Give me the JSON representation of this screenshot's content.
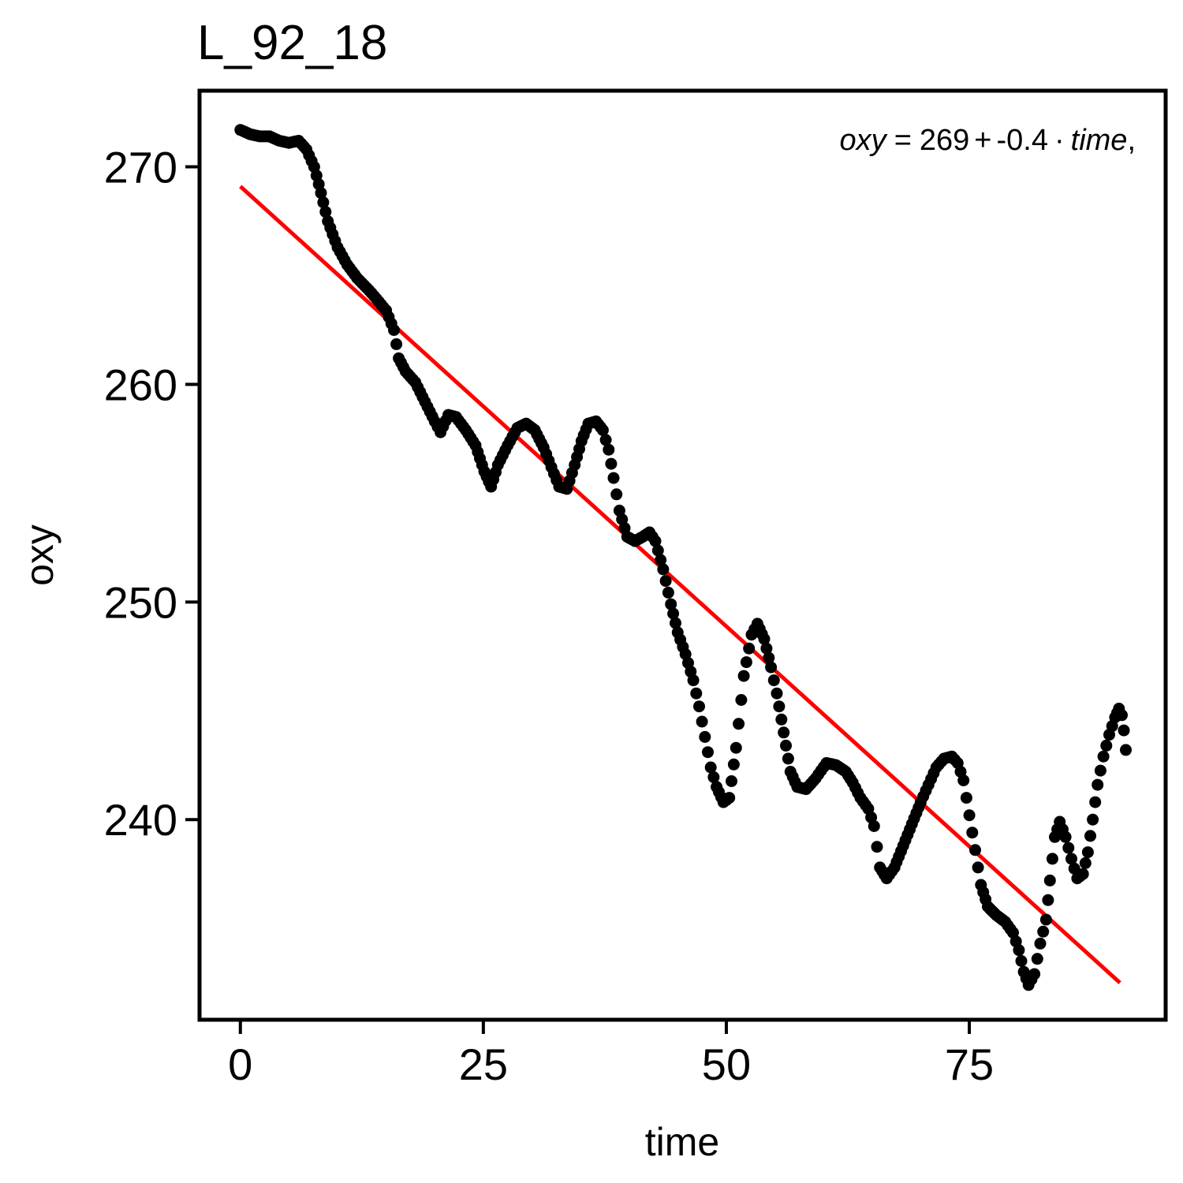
{
  "chart_data": {
    "type": "scatter",
    "title": "L_92_18",
    "xlabel": "time",
    "ylabel": "oxy",
    "xlim": [
      -4.2,
      95.2
    ],
    "ylim": [
      230.8,
      273.5
    ],
    "x_ticks": [
      0,
      25,
      50,
      75
    ],
    "x_tick_labels": [
      "0",
      "25",
      "50",
      "75"
    ],
    "y_ticks": [
      240,
      250,
      260,
      270
    ],
    "y_tick_labels": [
      "240",
      "250",
      "260",
      "270"
    ],
    "grid": false,
    "legend": "none",
    "annotation": {
      "lhs": "oxy",
      "eq": "=",
      "intercept": "269",
      "plus": "+",
      "slope": "-0.4",
      "dot": "·",
      "var": "time",
      "comma": ","
    },
    "points_color": "#000000",
    "fit_color": "#ff0000",
    "fit_line": {
      "x": [
        0,
        90.5
      ],
      "y": [
        269.1,
        232.5
      ]
    },
    "anchors": [
      [
        0,
        271.7
      ],
      [
        1,
        271.5
      ],
      [
        2,
        271.4
      ],
      [
        3,
        271.4
      ],
      [
        4,
        271.2
      ],
      [
        5,
        271.1
      ],
      [
        6,
        271.2
      ],
      [
        6.8,
        270.8
      ],
      [
        7.6,
        270.0
      ],
      [
        8.3,
        268.8
      ],
      [
        9,
        267.5
      ],
      [
        10,
        266.3
      ],
      [
        11,
        265.5
      ],
      [
        12,
        264.9
      ],
      [
        13.5,
        264.2
      ],
      [
        15,
        263.4
      ],
      [
        15.8,
        262.5
      ],
      [
        16.3,
        261.2
      ],
      [
        17,
        260.6
      ],
      [
        18,
        260.1
      ],
      [
        19,
        259.2
      ],
      [
        20,
        258.3
      ],
      [
        20.6,
        257.8
      ],
      [
        21.4,
        258.6
      ],
      [
        22.2,
        258.5
      ],
      [
        23.2,
        257.9
      ],
      [
        24.2,
        257.2
      ],
      [
        25.1,
        256.0
      ],
      [
        25.8,
        255.3
      ],
      [
        26.5,
        256.3
      ],
      [
        27.5,
        257.2
      ],
      [
        28.5,
        258.0
      ],
      [
        29.4,
        258.2
      ],
      [
        30.3,
        257.9
      ],
      [
        31.2,
        257.1
      ],
      [
        32,
        256.2
      ],
      [
        32.8,
        255.3
      ],
      [
        33.6,
        255.2
      ],
      [
        34.4,
        256.3
      ],
      [
        35.1,
        257.4
      ],
      [
        35.8,
        258.2
      ],
      [
        36.6,
        258.3
      ],
      [
        37.3,
        257.9
      ],
      [
        37.9,
        257.0
      ],
      [
        38.4,
        255.7
      ],
      [
        39,
        254.2
      ],
      [
        39.8,
        253.0
      ],
      [
        40.6,
        252.8
      ],
      [
        41.4,
        253.0
      ],
      [
        42.1,
        253.2
      ],
      [
        42.7,
        252.8
      ],
      [
        43.5,
        251.5
      ],
      [
        44.3,
        249.9
      ],
      [
        45,
        248.6
      ],
      [
        45.8,
        247.6
      ],
      [
        46.6,
        246.4
      ],
      [
        47.2,
        245.2
      ],
      [
        47.8,
        243.8
      ],
      [
        48.4,
        242.4
      ],
      [
        49,
        241.5
      ],
      [
        49.7,
        240.8
      ],
      [
        50.3,
        241.0
      ],
      [
        51,
        243.3
      ],
      [
        51.8,
        246.6
      ],
      [
        52.6,
        248.5
      ],
      [
        53.2,
        249.0
      ],
      [
        53.9,
        248.3
      ],
      [
        54.6,
        247.0
      ],
      [
        55.2,
        245.8
      ],
      [
        55.9,
        244.0
      ],
      [
        56.6,
        242.2
      ],
      [
        57.3,
        241.5
      ],
      [
        58.2,
        241.4
      ],
      [
        59.2,
        241.9
      ],
      [
        60.3,
        242.6
      ],
      [
        61.3,
        242.5
      ],
      [
        62.3,
        242.2
      ],
      [
        63,
        241.7
      ],
      [
        63.8,
        241.0
      ],
      [
        64.6,
        240.5
      ],
      [
        65.2,
        239.7
      ],
      [
        65.8,
        237.8
      ],
      [
        66.5,
        237.3
      ],
      [
        67.3,
        237.8
      ],
      [
        68.2,
        238.8
      ],
      [
        69.1,
        239.8
      ],
      [
        70,
        240.8
      ],
      [
        70.8,
        241.6
      ],
      [
        71.6,
        242.4
      ],
      [
        72.4,
        242.8
      ],
      [
        73.2,
        242.9
      ],
      [
        73.8,
        242.6
      ],
      [
        74.4,
        241.8
      ],
      [
        75,
        240.2
      ],
      [
        75.6,
        238.6
      ],
      [
        76.2,
        237.0
      ],
      [
        76.9,
        236.0
      ],
      [
        77.8,
        235.6
      ],
      [
        78.7,
        235.3
      ],
      [
        79.5,
        234.8
      ],
      [
        80.1,
        234.0
      ],
      [
        80.6,
        233.0
      ],
      [
        81.1,
        232.4
      ],
      [
        81.7,
        232.9
      ],
      [
        82.3,
        234.3
      ],
      [
        82.9,
        235.4
      ],
      [
        83.3,
        237.2
      ],
      [
        83.8,
        239.2
      ],
      [
        84.3,
        239.9
      ],
      [
        84.9,
        239.2
      ],
      [
        85.5,
        238.2
      ],
      [
        86.1,
        237.3
      ],
      [
        86.7,
        237.5
      ],
      [
        87.2,
        238.5
      ],
      [
        87.7,
        240.0
      ],
      [
        88.2,
        241.6
      ],
      [
        88.8,
        242.9
      ],
      [
        89.4,
        243.9
      ],
      [
        90,
        244.7
      ],
      [
        90.4,
        245.1
      ],
      [
        90.7,
        244.8
      ],
      [
        90.9,
        244.1
      ],
      [
        91.1,
        243.2
      ]
    ]
  }
}
